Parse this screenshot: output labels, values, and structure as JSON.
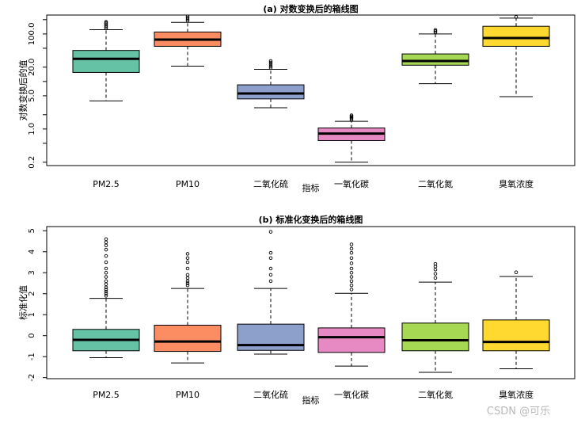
{
  "chart_data": [
    {
      "type": "box",
      "title": "(a) 对数变换后的箱线图",
      "xlabel": "指标",
      "ylabel": "对数变换后的值",
      "yscale": "log",
      "ylim": [
        0.17,
        250
      ],
      "yticks": [
        0.2,
        1.0,
        5.0,
        20.0,
        100.0
      ],
      "ytick_labels": [
        "0.2",
        "1.0",
        "5.0",
        "20.0",
        "100.0"
      ],
      "categories": [
        "PM2.5",
        "PM10",
        "二氧化硫",
        "一氧化碳",
        "二氧化氮",
        "臭氧浓度"
      ],
      "colors": [
        "#66c2a5",
        "#fc8d62",
        "#8da0cb",
        "#e78ac3",
        "#a6d854",
        "#ffd92f"
      ],
      "boxes": [
        {
          "whislo": 3.9,
          "q1": 15.5,
          "med": 30,
          "q3": 45,
          "whishi": 123,
          "fliers": [
            130,
            140,
            150,
            160,
            170,
            180
          ]
        },
        {
          "whislo": 21,
          "q1": 55,
          "med": 76,
          "q3": 110,
          "whishi": 175,
          "fliers": [
            190,
            205,
            220,
            235
          ]
        },
        {
          "whislo": 2.8,
          "q1": 4.3,
          "med": 5.6,
          "q3": 8.5,
          "whishi": 18,
          "fliers": [
            19.5,
            21,
            23,
            25,
            27
          ]
        },
        {
          "whislo": 0.2,
          "q1": 0.57,
          "med": 0.8,
          "q3": 1.05,
          "whishi": 1.45,
          "fliers": [
            1.55,
            1.65,
            1.75,
            1.85,
            1.95
          ]
        },
        {
          "whislo": 9,
          "q1": 22,
          "med": 27,
          "q3": 38,
          "whishi": 100,
          "fliers": [
            108,
            115,
            122
          ]
        },
        {
          "whislo": 4.8,
          "q1": 55,
          "med": 82,
          "q3": 145,
          "whishi": 215,
          "fliers": [
            228
          ]
        }
      ]
    },
    {
      "type": "box",
      "title": "(b) 标准化变换后的箱线图",
      "xlabel": "指标",
      "ylabel": "标准化值",
      "yscale": "linear",
      "ylim": [
        -2.05,
        5.2
      ],
      "yticks": [
        -2,
        -1,
        0,
        1,
        2,
        3,
        4,
        5
      ],
      "ytick_labels": [
        "-2",
        "-1",
        "0",
        "1",
        "2",
        "3",
        "4",
        "5"
      ],
      "categories": [
        "PM2.5",
        "PM10",
        "二氧化硫",
        "一氧化碳",
        "二氧化氮",
        "臭氧浓度"
      ],
      "colors": [
        "#66c2a5",
        "#fc8d62",
        "#8da0cb",
        "#e78ac3",
        "#a6d854",
        "#ffd92f"
      ],
      "boxes": [
        {
          "whislo": -1.05,
          "q1": -0.72,
          "med": -0.2,
          "q3": 0.3,
          "whishi": 1.78,
          "fliers": [
            1.9,
            2.0,
            2.1,
            2.2,
            2.3,
            2.45,
            2.6,
            2.8,
            3.0,
            3.2,
            3.5,
            3.8,
            4.1,
            4.3,
            4.45,
            4.6
          ]
        },
        {
          "whislo": -1.3,
          "q1": -0.75,
          "med": -0.28,
          "q3": 0.5,
          "whishi": 2.25,
          "fliers": [
            2.4,
            2.5,
            2.6,
            2.75,
            2.9,
            3.2,
            3.5,
            3.7,
            3.9
          ]
        },
        {
          "whislo": -0.88,
          "q1": -0.7,
          "med": -0.45,
          "q3": 0.55,
          "whishi": 2.25,
          "fliers": [
            2.6,
            2.9,
            3.2,
            3.7,
            3.95,
            4.95
          ]
        },
        {
          "whislo": -1.45,
          "q1": -0.8,
          "med": -0.07,
          "q3": 0.37,
          "whishi": 2.02,
          "fliers": [
            2.2,
            2.4,
            2.6,
            2.8,
            3.0,
            3.2,
            3.45,
            3.7,
            3.95,
            4.15,
            4.35
          ]
        },
        {
          "whislo": -1.75,
          "q1": -0.72,
          "med": -0.22,
          "q3": 0.6,
          "whishi": 2.55,
          "fliers": [
            2.75,
            2.95,
            3.15,
            3.3,
            3.42
          ]
        },
        {
          "whislo": -1.58,
          "q1": -0.72,
          "med": -0.3,
          "q3": 0.75,
          "whishi": 2.82,
          "fliers": [
            3.02
          ]
        }
      ]
    }
  ],
  "watermark": "CSDN @可乐"
}
